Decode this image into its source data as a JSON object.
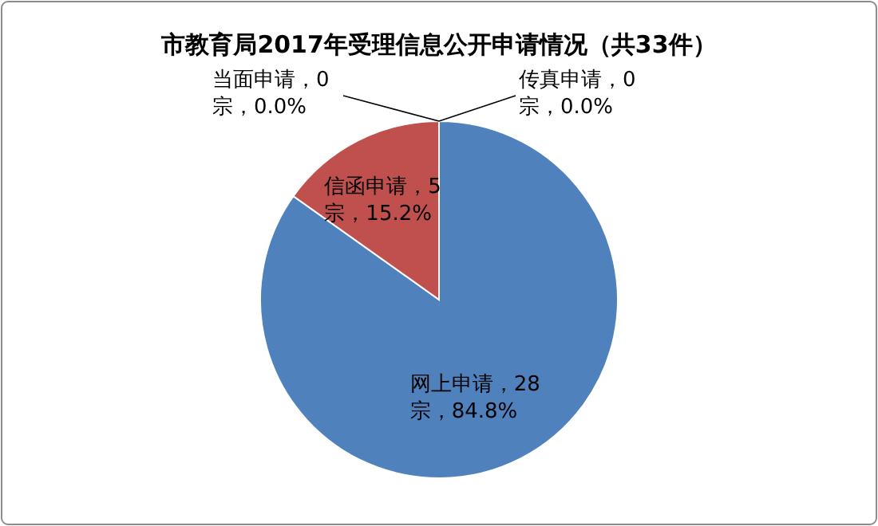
{
  "chart_data": {
    "type": "pie",
    "title": "市教育局2017年受理信息公开申请情况（共33件）",
    "categories": [
      "网上申请",
      "信函申请",
      "当面申请",
      "传真申请"
    ],
    "values": [
      28,
      5,
      0,
      0
    ],
    "colors": [
      "#4f81bd",
      "#c0504d",
      "#9bbb59",
      "#8064a2"
    ],
    "value_labels": [
      "，28宗，84.8%",
      "，5宗，15.2%",
      "，0宗，0.0%",
      "，0宗，0.0%"
    ]
  }
}
